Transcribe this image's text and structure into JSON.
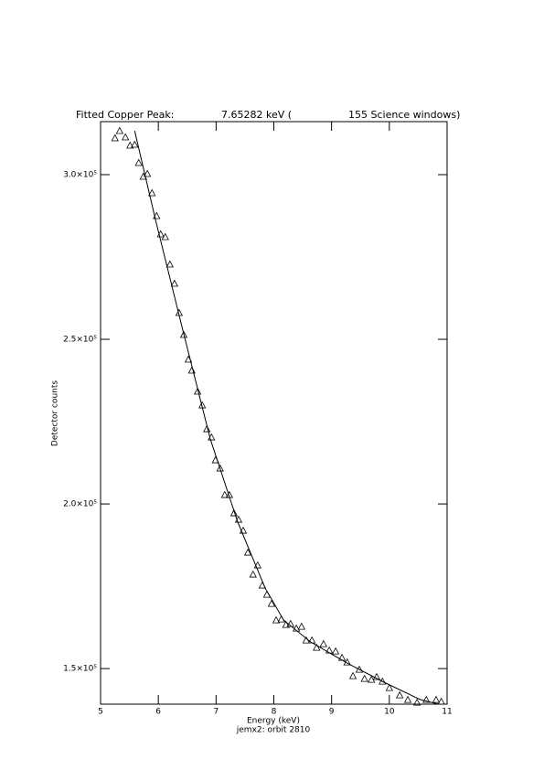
{
  "chart_data": {
    "type": "scatter",
    "title_parts": [
      "Fitted Copper Peak:",
      "7.65282 keV (",
      "155 Science windows)"
    ],
    "x_label": "Energy (keV)",
    "y_label": "Detector counts",
    "subtitle": "jemx2: orbit 2810",
    "xlim": [
      5,
      11
    ],
    "xticks": [
      5,
      6,
      7,
      8,
      9,
      10,
      11
    ],
    "ylim": [
      139200,
      316100
    ],
    "yticks": [
      {
        "value": 150000,
        "label": "1.5×10⁵"
      },
      {
        "value": 200000,
        "label": "2.0×10⁵"
      },
      {
        "value": 250000,
        "label": "2.5×10⁵"
      },
      {
        "value": 300000,
        "label": "3.0×10⁵"
      }
    ],
    "color": "#000000",
    "x": [
      5.25,
      5.33,
      5.43,
      5.51,
      5.59,
      5.66,
      5.74,
      5.81,
      5.89,
      5.97,
      6.04,
      6.12,
      6.2,
      6.28,
      6.36,
      6.44,
      6.52,
      6.58,
      6.68,
      6.76,
      6.84,
      6.92,
      6.99,
      7.07,
      7.15,
      7.23,
      7.31,
      7.39,
      7.47,
      7.55,
      7.64,
      7.72,
      7.8,
      7.88,
      7.96,
      8.04,
      8.13,
      8.21,
      8.29,
      8.39,
      8.48,
      8.56,
      8.66,
      8.74,
      8.86,
      8.96,
      9.07,
      9.18,
      9.27,
      9.37,
      9.48,
      9.57,
      9.69,
      9.78,
      9.88,
      10.0,
      10.18,
      10.32,
      10.48,
      10.64,
      10.81,
      10.9
    ],
    "values": [
      311111,
      313333,
      311389,
      308889,
      309167,
      303611,
      299444,
      300278,
      294444,
      287500,
      281944,
      281111,
      272778,
      266944,
      258056,
      251389,
      243889,
      240556,
      234167,
      230000,
      222778,
      220278,
      213333,
      210833,
      202778,
      202778,
      197222,
      195278,
      191944,
      185278,
      178611,
      181389,
      175278,
      172500,
      169722,
      164722,
      165000,
      163333,
      163611,
      162222,
      162778,
      158611,
      158611,
      156389,
      157500,
      155556,
      155278,
      153333,
      151944,
      147778,
      149722,
      146944,
      146667,
      147500,
      146111,
      144167,
      141944,
      140556,
      139722,
      140556,
      140556,
      140000
    ],
    "fit": {
      "x": [
        5.59,
        5.95,
        6.42,
        6.9,
        7.37,
        7.85,
        8.17,
        8.64,
        9.27,
        9.91,
        10.54,
        10.86
      ],
      "values": [
        313333,
        286389,
        253056,
        219722,
        194722,
        174444,
        164722,
        158056,
        151667,
        145833,
        140556,
        139167
      ]
    }
  }
}
